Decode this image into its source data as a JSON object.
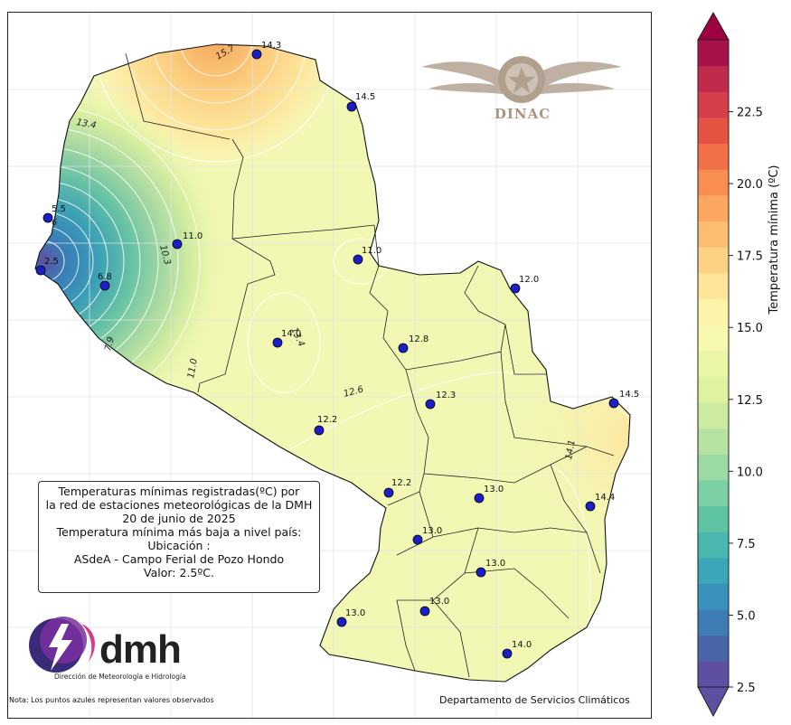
{
  "map": {
    "colormap": "Spectral_r",
    "range": [
      2.5,
      25
    ],
    "stations": [
      {
        "value": "14.3",
        "temp": 14.3
      },
      {
        "value": "14.5",
        "temp": 14.5
      },
      {
        "value": "5.5",
        "temp": 5.5
      },
      {
        "value": "2.5",
        "temp": 2.5
      },
      {
        "value": "11.0",
        "temp": 11.0
      },
      {
        "value": "6.8",
        "temp": 6.8
      },
      {
        "value": "11.0",
        "temp": 11.0
      },
      {
        "value": "12.0",
        "temp": 12.0
      },
      {
        "value": "14.0",
        "temp": 14.0
      },
      {
        "value": "12.8",
        "temp": 12.8
      },
      {
        "value": "12.3",
        "temp": 12.3
      },
      {
        "value": "14.5",
        "temp": 14.5
      },
      {
        "value": "12.2",
        "temp": 12.2
      },
      {
        "value": "12.2",
        "temp": 12.2
      },
      {
        "value": "13.0",
        "temp": 13.0
      },
      {
        "value": "14.4",
        "temp": 14.4
      },
      {
        "value": "13.0",
        "temp": 13.0
      },
      {
        "value": "13.0",
        "temp": 13.0
      },
      {
        "value": "13.0",
        "temp": 13.0
      },
      {
        "value": "13.0",
        "temp": 13.0
      },
      {
        "value": "14.0",
        "temp": 14.0
      }
    ],
    "contour_labels": [
      "15.7",
      "13.4",
      "6",
      "10.3",
      "7.9",
      "11.0",
      "13.4",
      "12.6",
      "14.1"
    ]
  },
  "info_box": {
    "lines": [
      "Temperaturas mínimas registradas(ºC) por",
      "la red de estaciones meteorológicas de la DMH",
      "20 de junio de 2025",
      "Temperatura mínima más baja a nivel país:",
      "Ubicación :",
      "ASdeA - Campo Ferial de Pozo Hondo",
      "Valor: 2.5ºC."
    ]
  },
  "logos": {
    "dinac": "DINAC",
    "dmh": "dmh",
    "dmh_subtitle": "Dirección de Meteorología e Hidrología"
  },
  "footnote": "Nota: Los puntos azules representan valores observados",
  "credit": "Departamento de Servicios Climáticos",
  "colorbar": {
    "label": "Temperatura mínima (ºC)",
    "ticks": [
      "2.5",
      "5.0",
      "7.5",
      "10.0",
      "12.5",
      "15.0",
      "17.5",
      "20.0",
      "22.5"
    ]
  },
  "colors": {
    "station_marker": "#1a1fc8",
    "cold": "#5e4fa2",
    "warm": "#9e0142",
    "neutral": "#f2f7b4"
  }
}
